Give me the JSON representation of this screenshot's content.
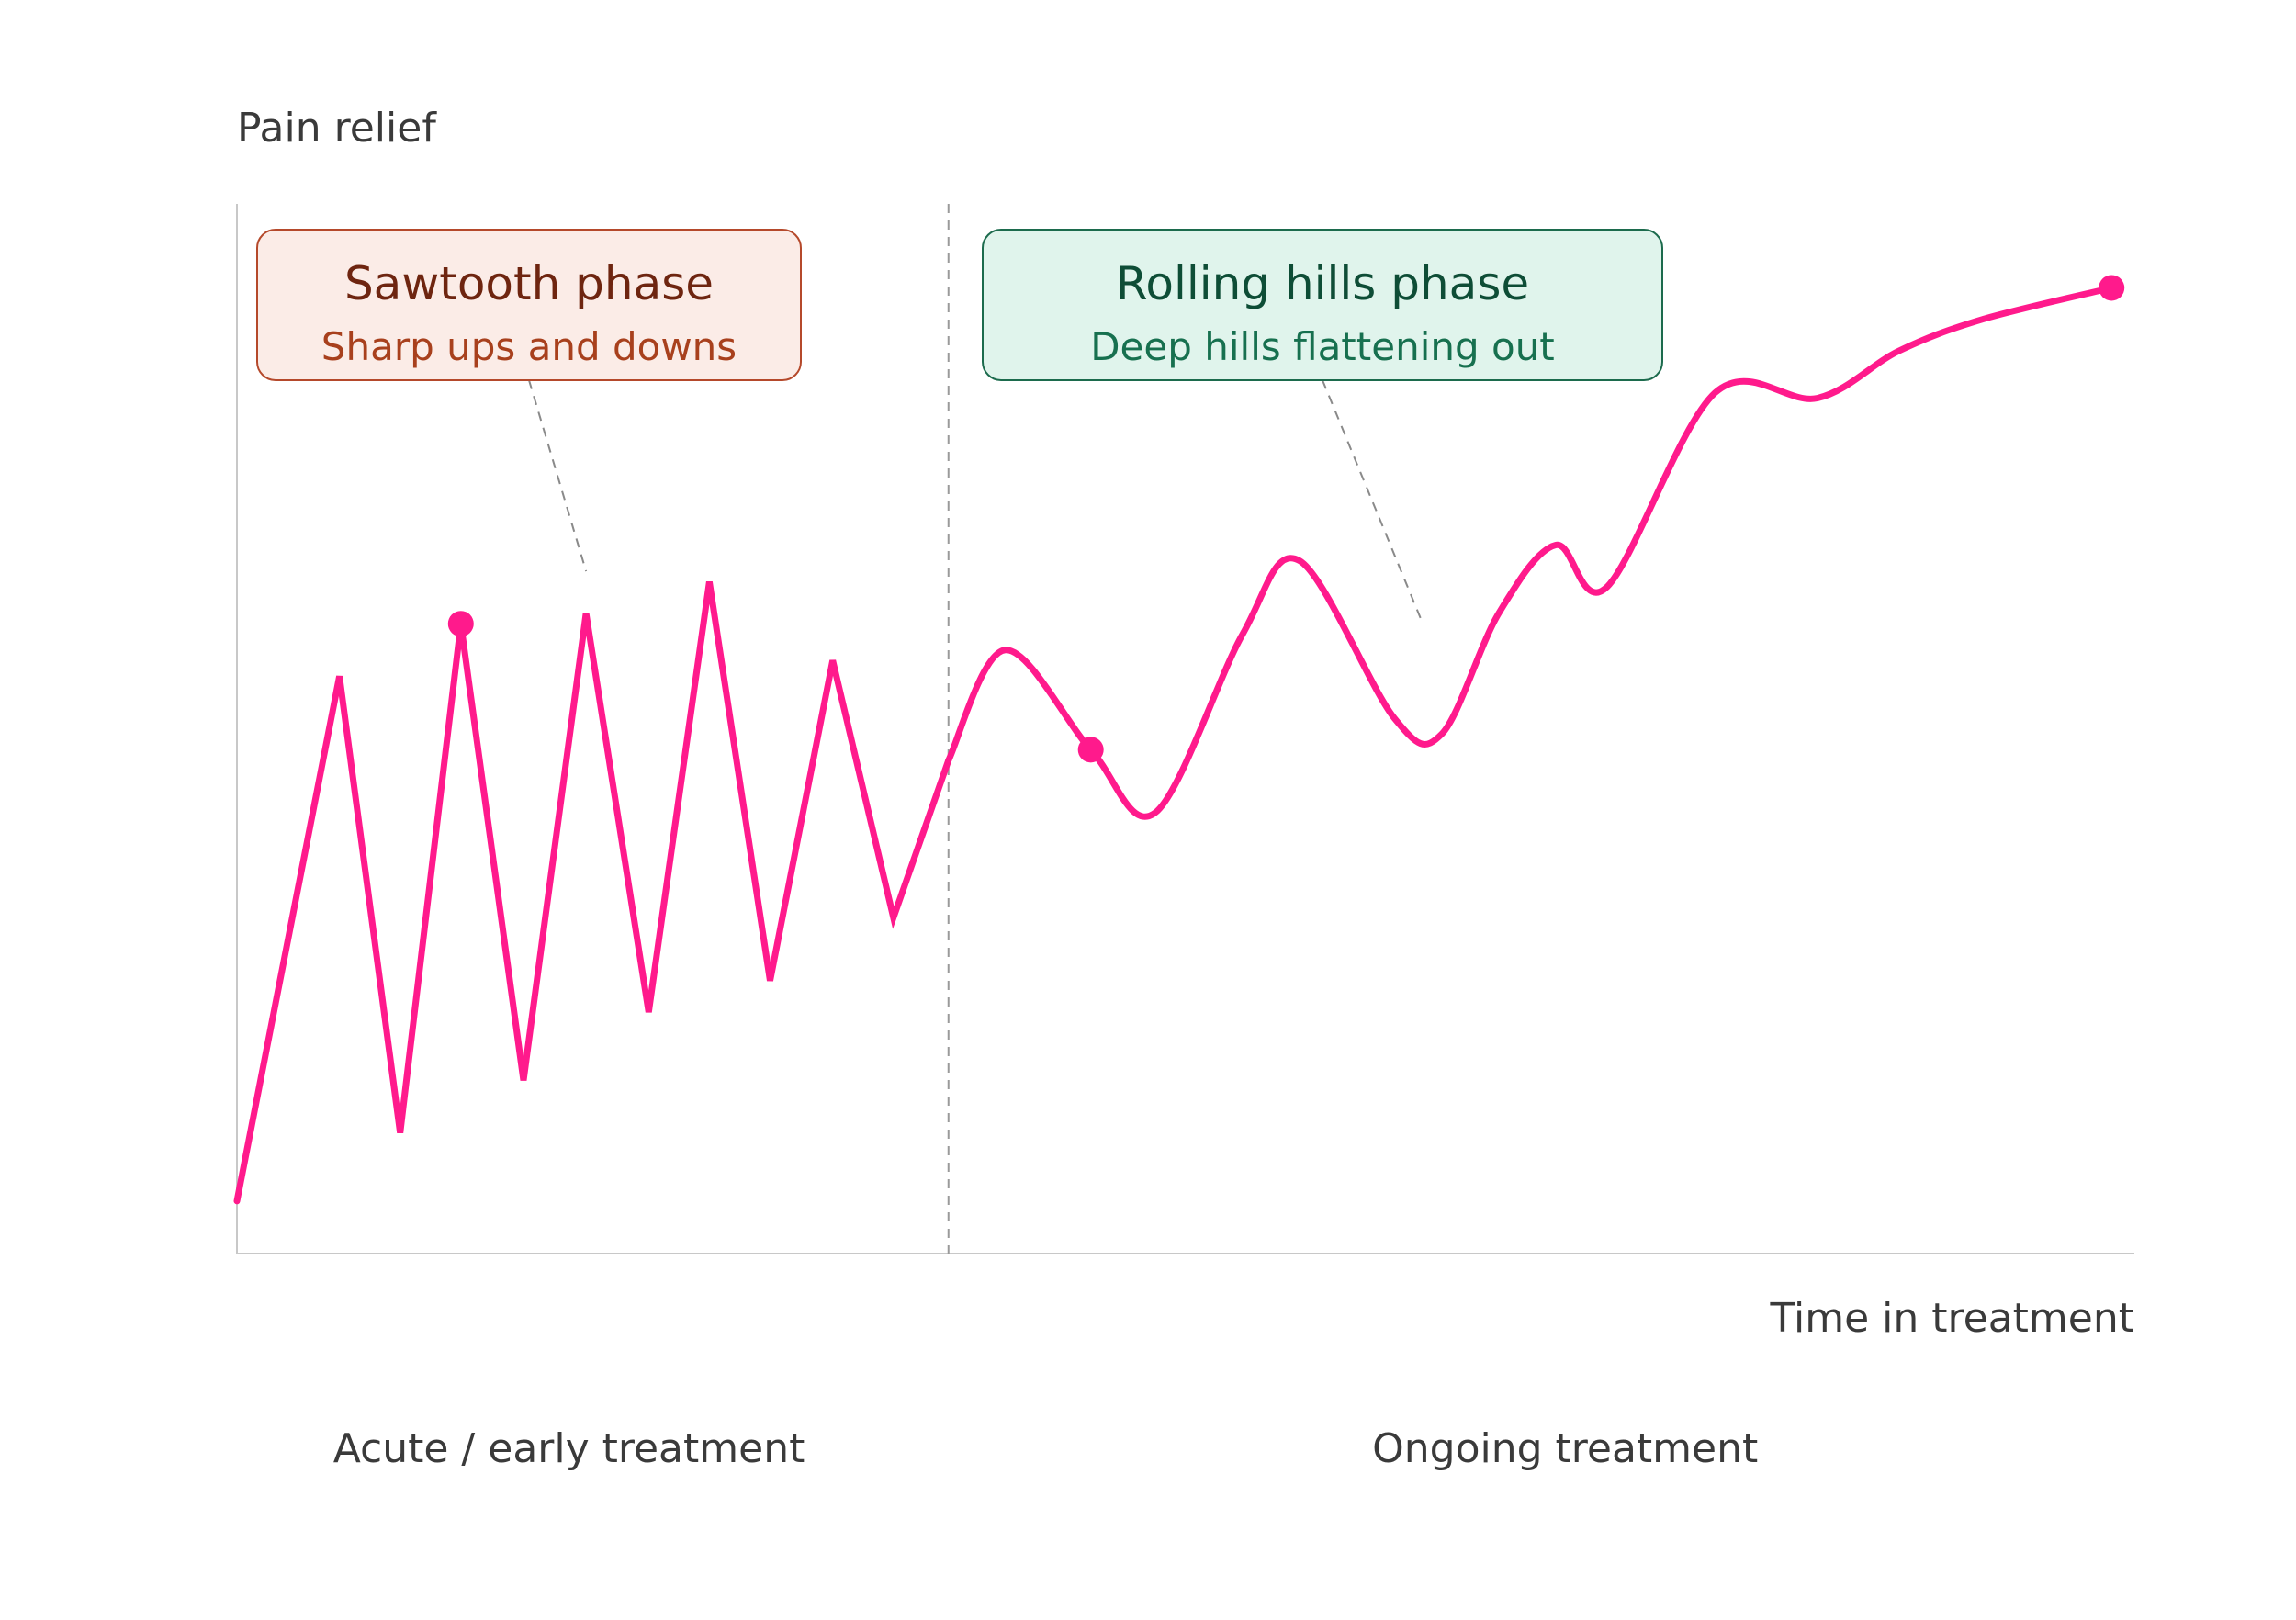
{
  "chart_data": {
    "type": "line",
    "title": "",
    "ylabel": "Pain relief",
    "xlabel": "Time in treatment",
    "xlim": [
      0,
      100
    ],
    "ylim": [
      0,
      100
    ],
    "grid": false,
    "legend": "none",
    "line_color": "#ff1a8c",
    "phase_divider_x": 37.5,
    "phases": [
      {
        "label": "Acute / early treatment",
        "x_center": 17.5
      },
      {
        "label": "Ongoing treatment",
        "x_center": 70
      }
    ],
    "callouts": [
      {
        "title": "Sawtooth phase",
        "subtitle": "Sharp ups and downs",
        "points_to": [
          18.4,
          65
        ],
        "fill": "#fbece7",
        "border": "#b5492b",
        "title_color": "#6e2510",
        "subtitle_color": "#a8401d"
      },
      {
        "title": "Rolling hills phase",
        "subtitle": "Deep hills flattening out",
        "points_to": [
          62.5,
          60
        ],
        "fill": "#e0f4ec",
        "border": "#1c6b4d",
        "title_color": "#0e4d36",
        "subtitle_color": "#17704f"
      }
    ],
    "series": [
      {
        "sawtooth": [
          [
            0.0,
            5
          ],
          [
            5.4,
            55
          ],
          [
            8.6,
            11.5
          ],
          [
            11.8,
            60
          ],
          [
            15.1,
            16.5
          ],
          [
            18.4,
            61
          ],
          [
            21.7,
            23
          ],
          [
            24.9,
            64
          ],
          [
            28.1,
            26
          ],
          [
            31.4,
            56.5
          ],
          [
            34.6,
            32
          ],
          [
            37.5,
            47
          ]
        ],
        "rolling": [
          [
            37.5,
            47
          ],
          [
            40.5,
            57.5
          ],
          [
            45.0,
            48
          ],
          [
            48.4,
            42
          ],
          [
            53.0,
            59
          ],
          [
            56.0,
            66
          ],
          [
            61.0,
            51
          ],
          [
            63.5,
            49.5
          ],
          [
            66.5,
            61
          ],
          [
            69.5,
            67.5
          ],
          [
            72.2,
            63.5
          ],
          [
            77.9,
            82
          ],
          [
            83.3,
            81.5
          ],
          [
            87.6,
            86
          ],
          [
            92.0,
            89
          ],
          [
            98.8,
            92
          ]
        ],
        "markers": [
          [
            11.8,
            60
          ],
          [
            45.0,
            48
          ],
          [
            98.8,
            92
          ]
        ]
      }
    ]
  }
}
